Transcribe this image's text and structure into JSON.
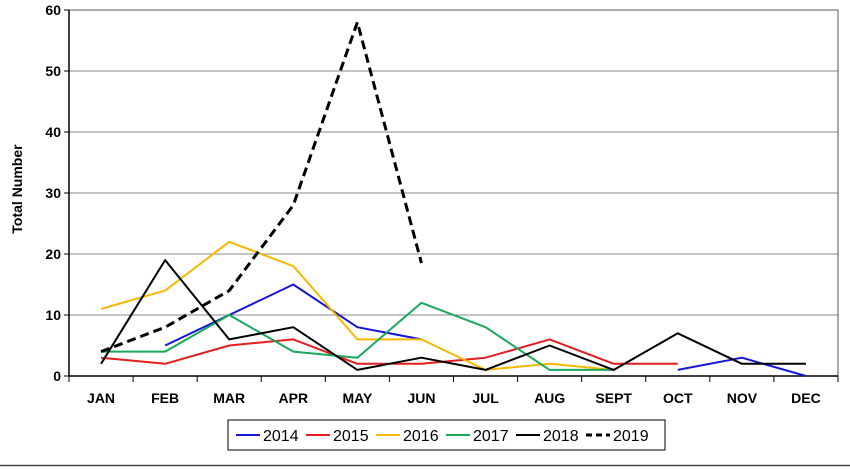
{
  "chart_data": {
    "type": "line",
    "title": "",
    "xlabel": "",
    "ylabel": "Total Number",
    "categories": [
      "JAN",
      "FEB",
      "MAR",
      "APR",
      "MAY",
      "JUN",
      "JUL",
      "AUG",
      "SEPT",
      "OCT",
      "NOV",
      "DEC"
    ],
    "ylim": [
      0,
      60
    ],
    "yticks": [
      0,
      10,
      20,
      30,
      40,
      50,
      60
    ],
    "grid": true,
    "legend_position": "bottom",
    "series": [
      {
        "name": "2014",
        "color": "#1515d6",
        "dashed": false,
        "values": [
          null,
          5,
          10,
          15,
          8,
          6,
          null,
          null,
          null,
          1,
          3,
          0
        ]
      },
      {
        "name": "2015",
        "color": "#e51d1d",
        "dashed": false,
        "values": [
          3,
          2,
          5,
          6,
          2,
          2,
          3,
          6,
          2,
          2,
          null,
          null
        ]
      },
      {
        "name": "2016",
        "color": "#f5b800",
        "dashed": false,
        "values": [
          11,
          14,
          22,
          18,
          6,
          6,
          1,
          2,
          1,
          null,
          null,
          null
        ]
      },
      {
        "name": "2017",
        "color": "#1aa85a",
        "dashed": false,
        "values": [
          4,
          4,
          10,
          4,
          3,
          12,
          8,
          1,
          1,
          null,
          null,
          null
        ]
      },
      {
        "name": "2018",
        "color": "#000000",
        "dashed": false,
        "values": [
          2,
          19,
          6,
          8,
          1,
          3,
          1,
          5,
          1,
          7,
          2,
          2
        ]
      },
      {
        "name": "2019",
        "color": "#000000",
        "dashed": true,
        "values": [
          4,
          8,
          14,
          28,
          58,
          18.5,
          null,
          null,
          null,
          null,
          null,
          null
        ]
      }
    ]
  }
}
